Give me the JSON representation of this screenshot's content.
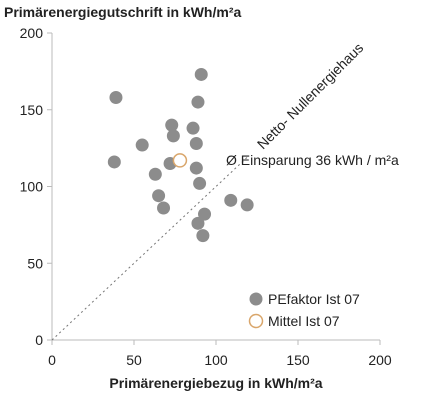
{
  "chart_data": {
    "type": "scatter",
    "ylabel": "Primärenergiegutschrift in kWh/m²a",
    "xlabel": "Primärenergiebezug in kWh/m²a",
    "xlim": [
      0,
      200
    ],
    "ylim": [
      0,
      200
    ],
    "xticks": [
      "0",
      "50",
      "100",
      "150",
      "200"
    ],
    "yticks": [
      "0",
      "50",
      "100",
      "150",
      "200"
    ],
    "grid": false,
    "legend_position": "bottom-right",
    "reference_line": {
      "label": "Netto- Nullenergiehaus",
      "x": [
        0,
        120
      ],
      "y": [
        0,
        120
      ],
      "style": "dotted"
    },
    "annotation": "Ø Einsparung 36 kWh / m²a",
    "series": [
      {
        "name": "PEfaktor Ist 07",
        "marker": "filled-circle",
        "color": "#8c8c8c",
        "points": [
          [
            39,
            158
          ],
          [
            38,
            116
          ],
          [
            55,
            127
          ],
          [
            63,
            108
          ],
          [
            65,
            94
          ],
          [
            68,
            86
          ],
          [
            73,
            140
          ],
          [
            74,
            133
          ],
          [
            72,
            115
          ],
          [
            86,
            138
          ],
          [
            88,
            128
          ],
          [
            89,
            155
          ],
          [
            91,
            173
          ],
          [
            88,
            112
          ],
          [
            90,
            102
          ],
          [
            89,
            76
          ],
          [
            93,
            82
          ],
          [
            92,
            68
          ],
          [
            109,
            91
          ],
          [
            119,
            88
          ]
        ]
      },
      {
        "name": "Mittel Ist 07",
        "marker": "open-circle",
        "color": "#d9a66b",
        "points": [
          [
            78,
            117
          ]
        ]
      }
    ]
  }
}
